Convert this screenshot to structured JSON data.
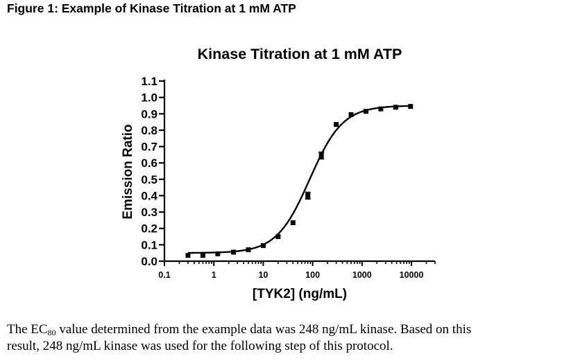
{
  "figure_caption": "Figure 1: Example of Kinase Titration at 1 mM ATP",
  "body": {
    "line1_pre": "The EC",
    "line1_sub": "80",
    "line1_post": " value determined from the example data was 248 ng/mL kinase.  Based on this",
    "line2": "result, 248 ng/mL kinase was used for the following step of this protocol."
  },
  "chart_data": {
    "type": "scatter",
    "title": "Kinase Titration at 1 mM ATP",
    "xlabel": "[TYK2] (ng/mL)",
    "ylabel": "Emission Ratio",
    "x_scale": "log",
    "xlim": [
      0.1,
      30000
    ],
    "ylim": [
      0.0,
      1.1
    ],
    "x_ticks": [
      0.1,
      1,
      10,
      100,
      1000,
      10000
    ],
    "x_tick_labels": [
      "0.1",
      "1",
      "10",
      "100",
      "1000",
      "10000"
    ],
    "y_ticks": [
      0.0,
      0.1,
      0.2,
      0.3,
      0.4,
      0.5,
      0.6,
      0.7,
      0.8,
      0.9,
      1.0,
      1.1
    ],
    "y_tick_labels": [
      "0.0",
      "0.1",
      "0.2",
      "0.3",
      "0.4",
      "0.5",
      "0.6",
      "0.7",
      "0.8",
      "0.9",
      "1.0",
      "1.1"
    ],
    "grid": false,
    "legend": "none",
    "series": [
      {
        "marker": "square",
        "color": "#000000",
        "points": [
          {
            "x": 0.3,
            "y": 0.035
          },
          {
            "x": 0.6,
            "y": 0.035
          },
          {
            "x": 1.2,
            "y": 0.045
          },
          {
            "x": 2.5,
            "y": 0.055
          },
          {
            "x": 5,
            "y": 0.07
          },
          {
            "x": 10,
            "y": 0.095
          },
          {
            "x": 20,
            "y": 0.15
          },
          {
            "x": 40,
            "y": 0.235
          },
          {
            "x": 80,
            "y": 0.4
          },
          {
            "x": 150,
            "y": 0.645
          },
          {
            "x": 300,
            "y": 0.835
          },
          {
            "x": 600,
            "y": 0.895
          },
          {
            "x": 1200,
            "y": 0.915
          },
          {
            "x": 2400,
            "y": 0.93
          },
          {
            "x": 4800,
            "y": 0.94
          },
          {
            "x": 9600,
            "y": 0.945
          }
        ],
        "error_bars": [
          {
            "x": 80,
            "low": 0.38,
            "high": 0.42
          },
          {
            "x": 150,
            "low": 0.625,
            "high": 0.665
          }
        ]
      }
    ],
    "fit_curve": {
      "model": "sigmoidal dose-response",
      "bottom": 0.05,
      "top": 0.95,
      "log_ec50": 1.94,
      "hill": 1.3,
      "x_range": [
        0.3,
        9600
      ]
    }
  }
}
